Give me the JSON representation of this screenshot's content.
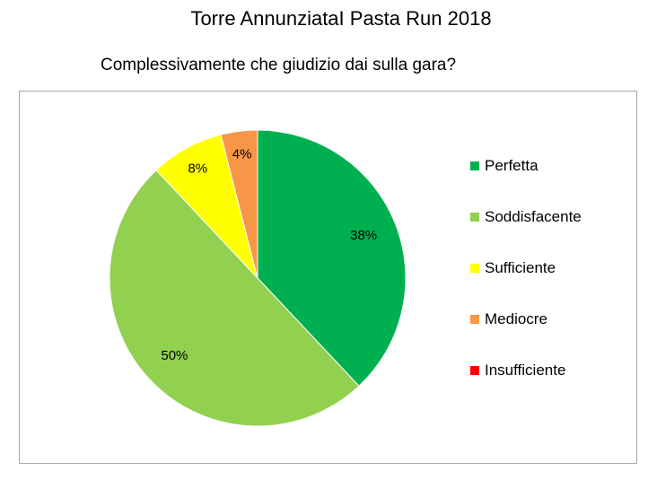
{
  "page": {
    "title": "Torre AnnunziataI Pasta Run 2018"
  },
  "chart_data": {
    "type": "pie",
    "title": "Complessivamente che giudizio dai sulla gara?",
    "categories": [
      "Perfetta",
      "Soddisfacente",
      "Sufficiente",
      "Mediocre",
      "Insufficiente"
    ],
    "values": [
      38,
      50,
      8,
      4,
      0
    ],
    "data_labels": [
      "38%",
      "50%",
      "8%",
      "4%",
      ""
    ],
    "unit": "%",
    "colors": [
      "#00b050",
      "#92d050",
      "#ffff00",
      "#f79646",
      "#ff0000"
    ],
    "legend_position": "right",
    "start_angle": "12 o'clock",
    "direction": "clockwise"
  }
}
